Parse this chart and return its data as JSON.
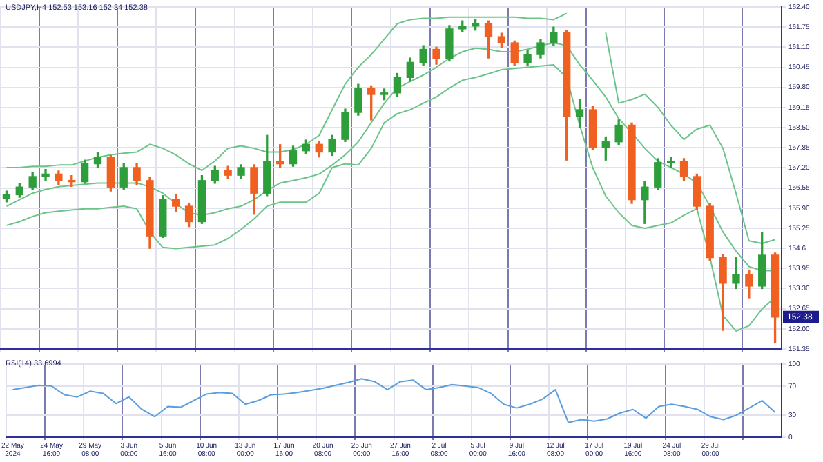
{
  "chart_data": [
    {
      "type": "candlestick",
      "title": "USDJPY,H4 152.53 153.16 152.34 152.38",
      "categories": [
        null,
        null,
        null,
        null,
        null,
        null,
        null,
        null,
        null,
        null,
        null,
        null,
        null,
        null,
        null,
        null,
        null,
        null,
        null,
        null,
        null,
        null,
        null,
        null,
        null,
        null,
        null,
        null,
        null,
        null,
        null,
        null,
        null,
        null,
        null,
        null,
        null,
        null,
        null,
        null,
        null,
        null,
        null,
        null,
        null,
        null,
        null,
        null,
        null,
        null,
        null,
        null,
        null,
        null,
        null,
        null,
        null,
        null,
        null,
        null
      ],
      "ohlc": [
        [
          156.2,
          156.45,
          156.1,
          156.33
        ],
        [
          156.33,
          156.7,
          156.25,
          156.58
        ],
        [
          156.58,
          157.05,
          156.5,
          156.92
        ],
        [
          156.92,
          157.15,
          156.8,
          157.0
        ],
        [
          157.0,
          157.1,
          156.65,
          156.79
        ],
        [
          156.79,
          156.95,
          156.6,
          156.75
        ],
        [
          156.75,
          157.45,
          156.7,
          157.33
        ],
        [
          157.33,
          157.7,
          157.2,
          157.54
        ],
        [
          157.54,
          157.6,
          156.45,
          156.58
        ],
        [
          156.58,
          157.35,
          156.5,
          157.21
        ],
        [
          157.21,
          157.35,
          156.65,
          156.79
        ],
        [
          156.79,
          156.9,
          154.6,
          155.0
        ],
        [
          155.0,
          156.3,
          154.95,
          156.17
        ],
        [
          156.17,
          156.35,
          155.8,
          155.96
        ],
        [
          155.96,
          156.05,
          155.3,
          155.46
        ],
        [
          155.46,
          156.95,
          155.4,
          156.79
        ],
        [
          156.79,
          157.25,
          156.7,
          157.12
        ],
        [
          157.12,
          157.25,
          156.85,
          156.96
        ],
        [
          156.96,
          157.3,
          156.85,
          157.21
        ],
        [
          157.21,
          157.3,
          155.7,
          156.38
        ],
        [
          156.38,
          158.25,
          156.3,
          157.41
        ],
        [
          157.41,
          157.95,
          157.2,
          157.33
        ],
        [
          157.33,
          157.9,
          157.25,
          157.75
        ],
        [
          157.75,
          158.1,
          157.65,
          157.96
        ],
        [
          157.96,
          158.05,
          157.55,
          157.71
        ],
        [
          157.71,
          158.25,
          157.6,
          158.12
        ],
        [
          158.12,
          159.1,
          158.05,
          158.99
        ],
        [
          158.99,
          159.9,
          158.9,
          159.78
        ],
        [
          159.78,
          159.85,
          158.75,
          159.57
        ],
        [
          159.57,
          159.75,
          159.4,
          159.62
        ],
        [
          159.62,
          160.25,
          159.5,
          160.12
        ],
        [
          160.12,
          160.75,
          160.0,
          160.61
        ],
        [
          160.61,
          161.15,
          160.5,
          161.03
        ],
        [
          161.03,
          161.1,
          160.55,
          160.74
        ],
        [
          160.74,
          161.8,
          160.65,
          161.69
        ],
        [
          161.69,
          161.95,
          161.6,
          161.78
        ],
        [
          161.78,
          162.0,
          161.65,
          161.86
        ],
        [
          161.86,
          161.95,
          160.75,
          161.44
        ],
        [
          161.44,
          161.55,
          161.1,
          161.24
        ],
        [
          161.24,
          161.3,
          160.5,
          160.61
        ],
        [
          160.61,
          161.0,
          160.5,
          160.86
        ],
        [
          160.86,
          161.35,
          160.75,
          161.24
        ],
        [
          161.24,
          161.75,
          161.15,
          161.57
        ],
        [
          161.57,
          161.65,
          157.45,
          158.87
        ],
        [
          158.87,
          159.4,
          158.5,
          159.08
        ],
        [
          159.08,
          159.2,
          157.8,
          157.87
        ],
        [
          157.87,
          158.2,
          157.45,
          158.04
        ],
        [
          158.04,
          158.75,
          157.95,
          158.58
        ],
        [
          158.58,
          158.65,
          156.05,
          156.17
        ],
        [
          156.17,
          156.75,
          155.4,
          156.58
        ],
        [
          156.58,
          157.5,
          156.5,
          157.37
        ],
        [
          157.37,
          157.55,
          157.2,
          157.41
        ],
        [
          157.41,
          157.5,
          156.8,
          156.92
        ],
        [
          156.92,
          157.0,
          155.85,
          155.96
        ],
        [
          155.96,
          156.05,
          154.2,
          154.3
        ],
        [
          154.3,
          154.4,
          151.95,
          153.47
        ],
        [
          153.47,
          154.3,
          153.3,
          153.76
        ],
        [
          153.76,
          153.9,
          153.0,
          153.38
        ],
        [
          153.38,
          155.1,
          153.3,
          154.38
        ],
        [
          154.38,
          154.45,
          151.55,
          152.38
        ]
      ],
      "colors": [
        "#2e9e3a",
        "#2e9e3a",
        "#2e9e3a",
        "#2e9e3a",
        "#f06020",
        "#f06020",
        "#2e9e3a",
        "#2e9e3a",
        "#f06020",
        "#2e9e3a",
        "#f06020",
        "#f06020",
        "#2e9e3a",
        "#f06020",
        "#f06020",
        "#2e9e3a",
        "#2e9e3a",
        "#f06020",
        "#2e9e3a",
        "#f06020",
        "#2e9e3a",
        "#f06020",
        "#2e9e3a",
        "#2e9e3a",
        "#f06020",
        "#2e9e3a",
        "#2e9e3a",
        "#2e9e3a",
        "#f06020",
        "#2e9e3a",
        "#2e9e3a",
        "#2e9e3a",
        "#2e9e3a",
        "#f06020",
        "#2e9e3a",
        "#2e9e3a",
        "#2e9e3a",
        "#f06020",
        "#f06020",
        "#f06020",
        "#2e9e3a",
        "#2e9e3a",
        "#2e9e3a",
        "#f06020",
        "#2e9e3a",
        "#f06020",
        "#2e9e3a",
        "#2e9e3a",
        "#f06020",
        "#2e9e3a",
        "#2e9e3a",
        "#2e9e3a",
        "#f06020",
        "#f06020",
        "#f06020",
        "#f06020",
        "#2e9e3a",
        "#f06020",
        "#2e9e3a",
        "#f06020"
      ],
      "series": [
        {
          "type": "line",
          "color": "#6cc48a",
          "values": [
            157.21,
            157.21,
            157.25,
            157.25,
            157.29,
            157.29,
            157.42,
            157.54,
            157.62,
            157.67,
            157.71,
            157.96,
            157.83,
            157.62,
            157.33,
            157.12,
            157.42,
            157.83,
            157.91,
            157.83,
            157.71,
            157.71,
            157.79,
            157.96,
            158.25,
            159.08,
            159.91,
            160.45,
            160.86,
            161.36,
            161.86,
            161.99,
            162.03,
            162.03,
            162.07,
            162.07,
            162.07,
            162.07,
            162.07,
            162.07,
            162.03,
            162.03,
            161.99,
            162.19,
            null,
            null,
            161.57,
            159.29,
            159.41,
            159.58,
            159.16,
            158.58,
            158.12,
            158.45,
            158.58,
            157.83,
            156.38,
            154.84,
            154.76,
            154.88
          ]
        },
        {
          "type": "line",
          "color": "#6cc48a",
          "values": [
            155.96,
            156.17,
            156.38,
            156.5,
            156.59,
            156.63,
            156.67,
            156.71,
            156.71,
            156.71,
            156.71,
            156.59,
            156.38,
            156.04,
            155.75,
            155.67,
            155.75,
            155.88,
            155.96,
            156.17,
            156.46,
            156.71,
            156.79,
            156.88,
            157.0,
            157.29,
            157.62,
            158.04,
            158.66,
            159.29,
            159.78,
            159.99,
            160.2,
            160.45,
            160.74,
            160.95,
            161.07,
            161.03,
            160.95,
            160.95,
            161.03,
            161.15,
            161.24,
            161.15,
            160.53,
            160.03,
            159.49,
            158.79,
            158.33,
            157.83,
            157.42,
            157.21,
            157.0,
            156.71,
            155.96,
            155.13,
            154.51,
            154.01,
            153.88,
            153.88
          ]
        },
        {
          "type": "line",
          "color": "#6cc48a",
          "values": [
            155.34,
            155.46,
            155.63,
            155.75,
            155.8,
            155.84,
            155.88,
            155.88,
            155.92,
            155.96,
            155.88,
            155.13,
            154.63,
            154.59,
            154.63,
            154.67,
            154.71,
            154.92,
            155.21,
            155.55,
            155.96,
            156.09,
            156.09,
            156.09,
            156.38,
            157.21,
            157.33,
            157.29,
            157.83,
            158.66,
            158.95,
            159.08,
            159.29,
            159.49,
            159.78,
            160.03,
            160.12,
            160.24,
            160.37,
            160.41,
            160.45,
            160.49,
            160.53,
            160.12,
            158.58,
            157.21,
            156.29,
            155.75,
            155.34,
            155.25,
            155.34,
            155.42,
            155.67,
            155.88,
            154.3,
            152.43,
            151.93,
            152.1,
            152.64,
            153.01
          ]
        }
      ],
      "ylim": [
        151.35,
        162.4
      ],
      "yticks": [
        151.35,
        {
          "value": 152,
          "label": "152.00"
        },
        152.65,
        {
          "value": 153.3,
          "label": "153.30"
        },
        153.95,
        154.6,
        155.25,
        {
          "value": 155.9,
          "label": "155.90"
        },
        156.55,
        {
          "value": 157.2,
          "label": "157.20"
        },
        157.85,
        {
          "value": 158.5,
          "label": "158.50"
        },
        159.15,
        {
          "value": 159.8,
          "label": "159.80"
        },
        160.45,
        {
          "value": 161.1,
          "label": "161.10"
        },
        161.75,
        {
          "value": 162.4,
          "label": "162.40"
        }
      ],
      "annotations": [
        {
          "text": "152.38",
          "y": 152.38
        }
      ],
      "grid": true,
      "tick_labels": "y"
    },
    {
      "type": "line",
      "title": "RSI(14) 33.6994",
      "color": "#5a9ee0",
      "categories": [
        "22 May 2024",
        null,
        null,
        "24 May 16:00",
        null,
        null,
        "29 May 08:00",
        null,
        null,
        "3 Jun 00:00",
        null,
        null,
        "5 Jun 16:00",
        null,
        null,
        "10 Jun 08:00",
        null,
        null,
        "13 Jun 00:00",
        null,
        null,
        "17 Jun 16:00",
        null,
        null,
        "20 Jun 08:00",
        null,
        null,
        "25 Jun 00:00",
        null,
        null,
        "27 Jun 16:00",
        null,
        null,
        "2 Jul 08:00",
        null,
        null,
        "5 Jul 00:00",
        null,
        null,
        "9 Jul 16:00",
        null,
        null,
        "12 Jul 08:00",
        null,
        null,
        "17 Jul 00:00",
        null,
        null,
        "19 Jul 16:00",
        null,
        null,
        "24 Jul 08:00",
        null,
        null,
        "29 Jul 00:00",
        null,
        null,
        null,
        null,
        null
      ],
      "values": [
        65,
        68,
        71,
        70,
        58,
        55,
        63,
        60,
        46,
        55,
        38,
        28,
        42,
        41,
        50,
        59,
        61,
        60,
        45,
        50,
        58,
        59,
        61,
        64,
        67,
        71,
        75,
        80,
        76,
        65,
        76,
        78,
        65,
        68,
        72,
        70,
        68,
        60,
        45,
        40,
        45,
        52,
        65,
        20,
        24,
        22,
        25,
        33,
        38,
        26,
        42,
        45,
        42,
        38,
        28,
        24,
        30,
        40,
        50,
        34
      ],
      "ylim": [
        0,
        100
      ],
      "yticks": [
        0,
        30,
        70,
        100
      ],
      "grid": true
    }
  ]
}
